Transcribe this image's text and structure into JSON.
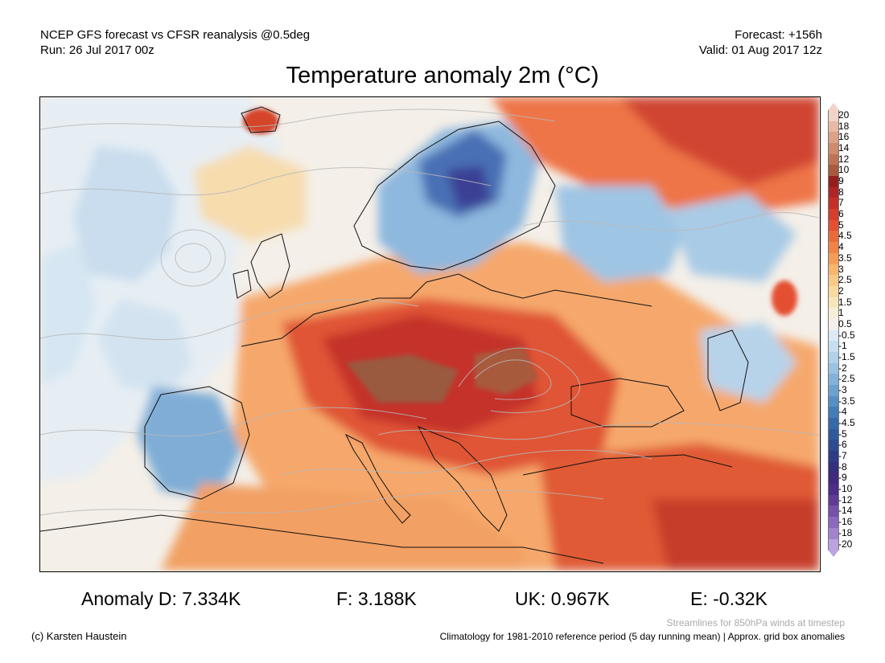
{
  "header": {
    "model_line": "NCEP GFS forecast vs CFSR reanalysis @0.5deg",
    "run_line": "Run: 26 Jul 2017 00z",
    "forecast_line": "Forecast: +156h",
    "valid_line": "Valid: 01 Aug 2017 12z"
  },
  "title": "Temperature anomaly 2m (°C)",
  "colorbar": {
    "labels": [
      "20",
      "18",
      "16",
      "14",
      "12",
      "10",
      "9",
      "8",
      "7",
      "6",
      "5",
      "4.5",
      "4",
      "3.5",
      "3",
      "2.5",
      "2",
      "1.5",
      "1",
      "0.5",
      "-0.5",
      "-1",
      "-1.5",
      "-2",
      "-2.5",
      "-3",
      "-3.5",
      "-4",
      "-4.5",
      "-5",
      "-6",
      "-7",
      "-8",
      "-9",
      "-10",
      "-12",
      "-14",
      "-16",
      "-18",
      "-20"
    ],
    "colors": [
      "#f3d2c8",
      "#e9b9a6",
      "#dea086",
      "#d08a6c",
      "#c07255",
      "#a85a3e",
      "#981e1e",
      "#b32424",
      "#c62f27",
      "#d83c2a",
      "#e45030",
      "#ec6a38",
      "#f28344",
      "#f69c55",
      "#f8b56b",
      "#f9c985",
      "#f9da9f",
      "#f8e6ba",
      "#f6efd8",
      "#f3f0ec",
      "#dbeaf4",
      "#c6def0",
      "#b0d1ea",
      "#9ac3e3",
      "#83b3da",
      "#6ca2d0",
      "#5590c5",
      "#417db9",
      "#356aab",
      "#2e5a9f",
      "#2c4b93",
      "#2e3c87",
      "#352f80",
      "#40297f",
      "#4e2c8a",
      "#613a98",
      "#7650ab",
      "#8c68be",
      "#a383cf",
      "#bba2e0"
    ]
  },
  "anomalies": {
    "d": "Anomaly D: 7.334K",
    "f": "F: 3.188K",
    "uk": "UK: 0.967K",
    "e": "E: -0.32K"
  },
  "footer": {
    "credit": "(c) Karsten Haustein",
    "streamlines_note": "Streamlines for 850hPa winds at timestep",
    "climatology_note": "Climatology for 1981-2010 reference period (5 day running mean) | Approx. grid box anomalies"
  }
}
